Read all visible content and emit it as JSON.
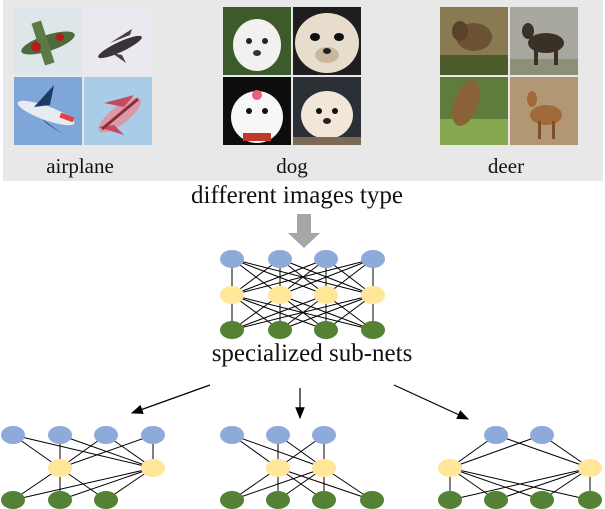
{
  "categories": [
    {
      "label": "airplane"
    },
    {
      "label": "dog"
    },
    {
      "label": "deer"
    }
  ],
  "captions": {
    "images": "different images type",
    "subnets": "specialized sub-nets"
  },
  "colors": {
    "panel": "#e8e8e8",
    "input_node": "#8eaadb",
    "hidden_node": "#ffe699",
    "output_node": "#548235",
    "arrow_big": "#a6a6a6",
    "edge": "#000000"
  }
}
